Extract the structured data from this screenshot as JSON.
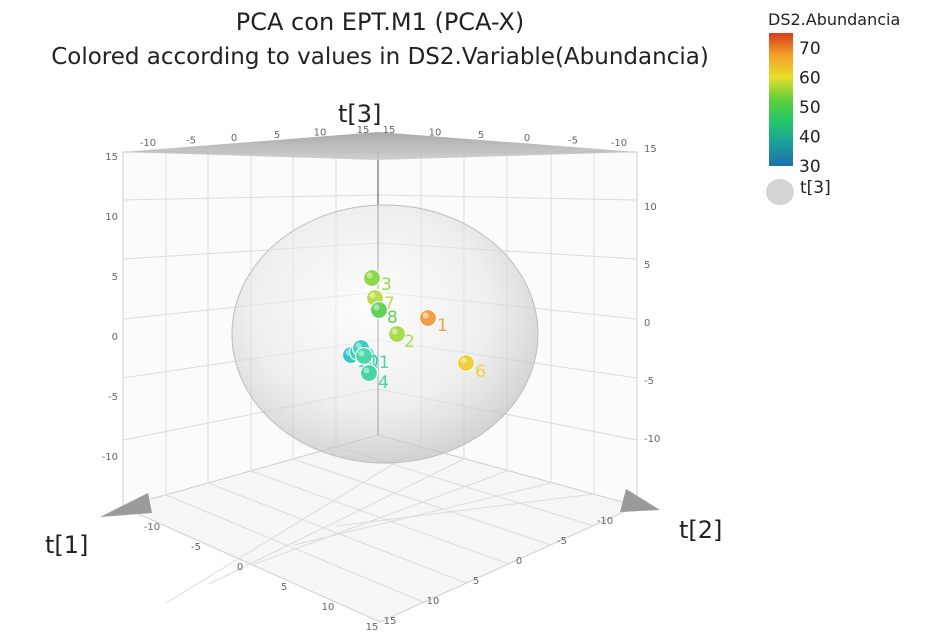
{
  "chart_data": {
    "type": "scatter",
    "subtype": "3d-pca",
    "title": "PCA con EPT.M1 (PCA-X)",
    "subtitle": "Colored according to values in DS2.Variable(Abundancia)",
    "axes": {
      "x": {
        "label": "t[1]",
        "range": [
          -15,
          15
        ],
        "ticks": [
          "-10",
          "-5",
          "0",
          "5",
          "10",
          "15"
        ]
      },
      "y": {
        "label": "t[2]",
        "range": [
          -15,
          15
        ],
        "ticks": [
          "-10",
          "-5",
          "0",
          "5",
          "10",
          "15"
        ]
      },
      "z": {
        "label": "t[3]",
        "range": [
          -15,
          15
        ],
        "ticks": [
          "-10",
          "-5",
          "0",
          "5",
          "10",
          "15"
        ]
      }
    },
    "color_scale": {
      "title": "DS2.Abundancia",
      "min": 30,
      "max": 75,
      "ticks": [
        "70",
        "60",
        "50",
        "40",
        "30"
      ],
      "colors": [
        "#d93a1c",
        "#f3a026",
        "#e6e02a",
        "#5fcf3a",
        "#22c86a",
        "#1a9e9a",
        "#1f6fb0"
      ]
    },
    "ellipse_legend": "t[3]",
    "grid": true,
    "points": [
      {
        "label": "1",
        "abundance": 66,
        "color": "#f0a04a"
      },
      {
        "label": "2",
        "abundance": 55,
        "color": "#a8dc4e"
      },
      {
        "label": "3",
        "abundance": 53,
        "color": "#8fd84a"
      },
      {
        "label": "4",
        "abundance": 42,
        "color": "#43d6a4"
      },
      {
        "label": "5",
        "abundance": 40,
        "color": "#3ed0b4"
      },
      {
        "label": "6",
        "abundance": 61,
        "color": "#f0d03a"
      },
      {
        "label": "7",
        "abundance": 56,
        "color": "#bcdc4a"
      },
      {
        "label": "8",
        "abundance": 50,
        "color": "#60d45a"
      },
      {
        "label": "9",
        "abundance": 41,
        "color": "#38cec0"
      },
      {
        "label": "10",
        "abundance": 38,
        "color": "#32c8c8"
      },
      {
        "label": "11",
        "abundance": 43,
        "color": "#4ad8a8"
      }
    ]
  }
}
